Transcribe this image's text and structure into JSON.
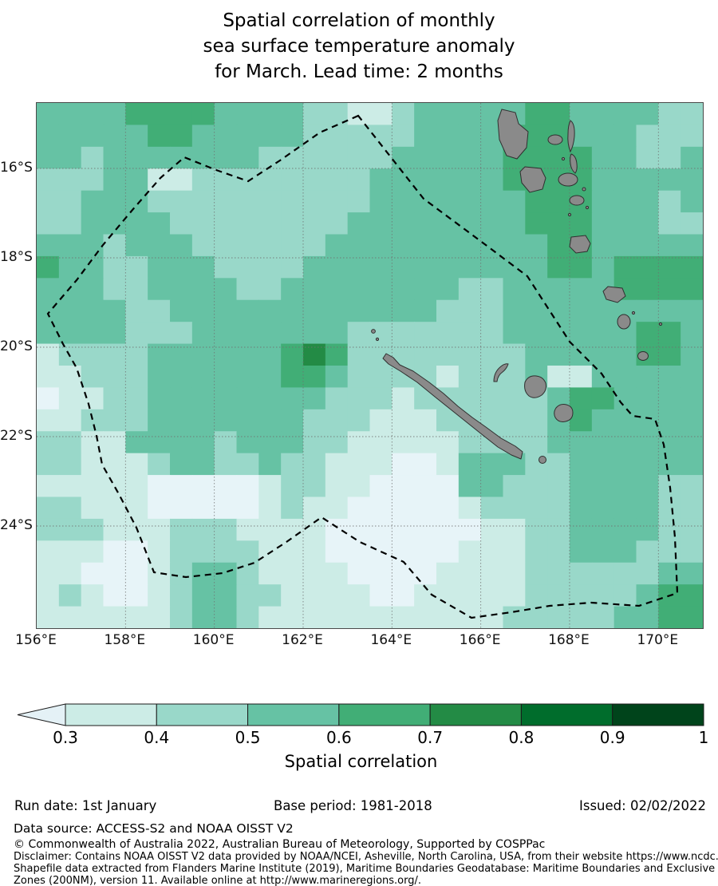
{
  "title": {
    "lines": [
      "Spatial correlation of monthly",
      "sea surface temperature anomaly",
      "for March. Lead time: 2 months"
    ]
  },
  "map": {
    "x_ticks": [
      "156°E",
      "158°E",
      "160°E",
      "162°E",
      "164°E",
      "166°E",
      "168°E",
      "170°E"
    ],
    "y_ticks": [
      "16°S",
      "18°S",
      "20°S",
      "22°S",
      "24°S"
    ],
    "lon_range": [
      156.0,
      171.0
    ],
    "lat_range": [
      "26.3°S",
      "14.5°S"
    ],
    "boundary": "dashed-eez-boundary",
    "land_color": "#8a8a8a",
    "grid": {
      "cols": 30,
      "rows": 24,
      "palette": {
        "0": "#e7f4f8",
        "1": "#ccece6",
        "2": "#99d8c9",
        "3": "#66c2a4",
        "4": "#41ae76",
        "5": "#238b45"
      },
      "rows_data": [
        "333344443333221123333344333322",
        "333334433333222223333444333222",
        "332333333322222233333444433223",
        "222331122222222333333444433333",
        "223332222222222333333344433323",
        "223333222222223333333344433322",
        "333233322222233333333334433333",
        "433223332222333333333334434444",
        "333223333223333333322333334444",
        "333322333333333333222333333333",
        "333322233333332222222333333443",
        "122223333334542222222233333443",
        "112223333334432222122231133333",
        "011223333333322212222223443333",
        "112223333333222111222223433333",
        "221133332333221111122223333333",
        "221112332232211100133322333333",
        "111110000012211000033222333322",
        "221110000012110000012222333322",
        "222111222111100000001122333322",
        "111001222211100000011122333222",
        "110001233211110000111122222233",
        "121001233221111001111122222344",
        "111111233211111111111222223344"
      ]
    }
  },
  "colorbar": {
    "ticks": [
      "0.3",
      "0.4",
      "0.5",
      "0.6",
      "0.7",
      "0.8",
      "0.9",
      "1"
    ],
    "label": "Spatial correlation",
    "segment_colors": [
      "#ccece6",
      "#99d8c9",
      "#66c2a4",
      "#41ae76",
      "#238b45",
      "#006d2c",
      "#00441b"
    ],
    "arrow_color": "#e4f1f6",
    "outline_color": "#1a1a1a"
  },
  "footer": {
    "run_date": "Run date: 1st January",
    "base_period": "Base period: 1981-2018",
    "issued": "Issued: 02/02/2022",
    "data_source": "Data source: ACCESS-S2 and NOAA OISST V2",
    "copyright": "© Commonwealth of Australia 2022, Australian Bureau of Meteorology, Supported by COSPPac",
    "disclaimer_line1": "Disclaimer: Contains NOAA OISST V2 data provided by NOAA/NCEI, Asheville, North Carolina, USA, from their website https://www.ncdc.noaa.gov/oisst",
    "disclaimer_line2": "Shapefile data extracted from Flanders Marine Institute (2019), Maritime Boundaries Geodatabase: Maritime Boundaries and Exclusive Economic",
    "disclaimer_line3": "Zones (200NM), version 11. Available online at http://www.marineregions.org/."
  }
}
